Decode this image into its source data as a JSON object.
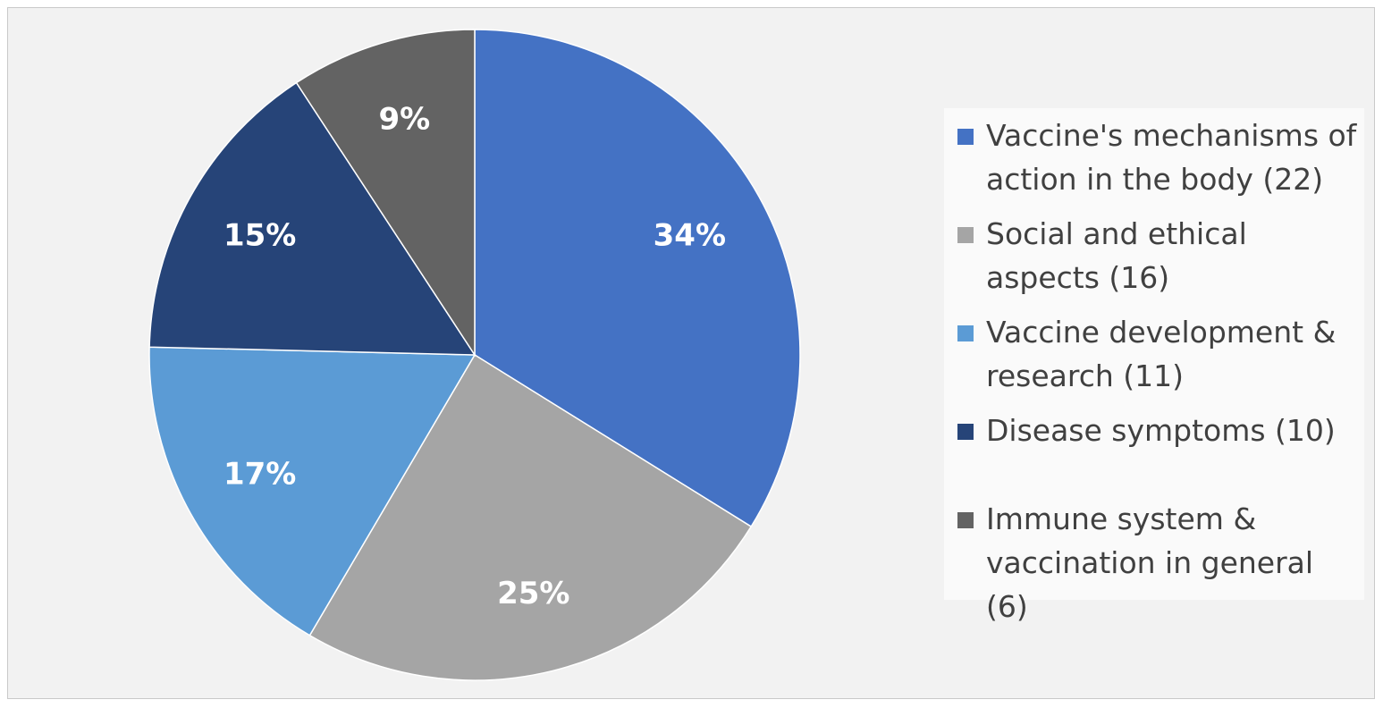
{
  "chart_data": {
    "type": "pie",
    "slices": [
      {
        "label": "Vaccine's mechanisms of action in the body (22)",
        "value": 22,
        "percent_label": "34%",
        "color": "#4472c4"
      },
      {
        "label": "Social and ethical aspects (16)",
        "value": 16,
        "percent_label": "25%",
        "color": "#a5a5a5"
      },
      {
        "label": "Vaccine development & research (11)",
        "value": 11,
        "percent_label": "17%",
        "color": "#5b9bd5"
      },
      {
        "label": "Disease symptoms (10)",
        "value": 10,
        "percent_label": "15%",
        "color": "#264478"
      },
      {
        "label": "Immune system & vaccination in general (6)",
        "value": 6,
        "percent_label": "9%",
        "color": "#636363"
      }
    ],
    "start_angle": "12 o'clock",
    "direction": "clockwise",
    "legend_position": "right",
    "title": ""
  }
}
